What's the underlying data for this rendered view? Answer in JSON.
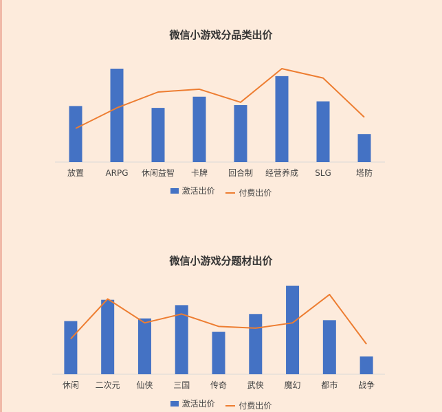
{
  "charts": [
    {
      "title": "微信小游戏分品类出价",
      "legend": {
        "bar": "激活出价",
        "line": "付费出价"
      }
    },
    {
      "title": "微信小游戏分题材出价",
      "legend": {
        "bar": "激活出价",
        "line": "付费出价"
      }
    }
  ],
  "colors": {
    "background": "#fdebdc",
    "bar": "#4472c4",
    "line": "#ed7d31",
    "axis": "#d9d9d9"
  },
  "chart_data": [
    {
      "type": "bar",
      "title": "微信小游戏分品类出价",
      "categories": [
        "放置",
        "ARPG",
        "休闲益智",
        "卡牌",
        "回合制",
        "经营养成",
        "SLG",
        "塔防"
      ],
      "series": [
        {
          "name": "激活出价",
          "type": "bar",
          "values": [
            60,
            100,
            58,
            70,
            61,
            92,
            65,
            30
          ]
        },
        {
          "name": "付费出价",
          "type": "line",
          "values": [
            36,
            58,
            75,
            78,
            64,
            100,
            90,
            48
          ]
        }
      ],
      "ylim": [
        0,
        100
      ],
      "grid": false,
      "legend_position": "bottom"
    },
    {
      "type": "bar",
      "title": "微信小游戏分题材出价",
      "categories": [
        "休闲",
        "二次元",
        "仙侠",
        "三国",
        "传奇",
        "武侠",
        "魔幻",
        "都市",
        "战争"
      ],
      "series": [
        {
          "name": "激活出价",
          "type": "bar",
          "values": [
            60,
            84,
            63,
            78,
            48,
            68,
            100,
            61,
            20
          ]
        },
        {
          "name": "付费出价",
          "type": "line",
          "values": [
            40,
            85,
            58,
            68,
            54,
            52,
            58,
            90,
            34
          ]
        }
      ],
      "ylim": [
        0,
        100
      ],
      "grid": false,
      "legend_position": "bottom"
    }
  ]
}
